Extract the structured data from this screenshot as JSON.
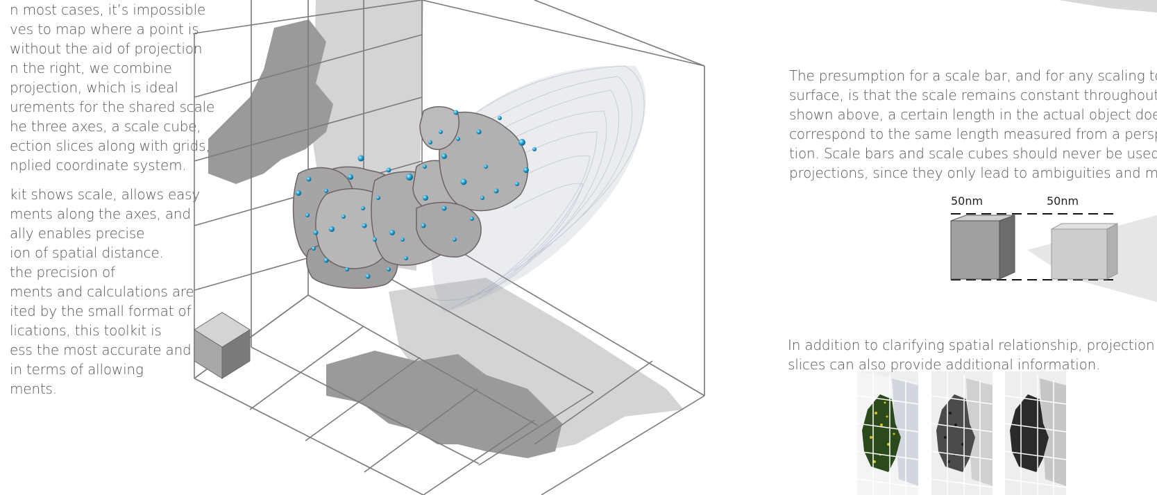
{
  "left_text": {
    "para1": [
      "n most cases, it’s impossible",
      "ves to map where a point is",
      "without the aid of projection",
      "n the right, we combine",
      " projection, which is ideal",
      "urements for the shared scale",
      "he three axes, a scale cube,",
      "ection slices along with grids,",
      "nplied coordinate system."
    ],
    "para2": [
      "kit shows scale, allows easy",
      "ments along the axes, and",
      "ally enables precise",
      "ion of spatial distance.",
      " the precision of",
      "ments and calculations are",
      "ited by the small format of",
      "lications, this toolkit is",
      "ess the most accurate and",
      "in terms of allowing",
      "ments."
    ]
  },
  "right_text": {
    "para1": [
      "The presumption for a scale bar, and for any scaling tool o",
      "surface, is that the scale remains constant throughout the i",
      "shown above, a certain length in the actual object doesn’t",
      "correspond to the same length measured from a perspectiv",
      "tion. Scale bars and scale cubes should never be used in p",
      "projections, since they only lead to ambiguities and mistak"
    ],
    "para2": [
      "In addition to clarifying spatial relationship, projection",
      "slices can also provide additional information."
    ]
  },
  "scale_labels": [
    "50nm",
    "50nm"
  ],
  "colors": {
    "grid_line": "#7a7a7a",
    "shadow_dark": "#9a9a9a",
    "shadow_light": "#cfcfcf",
    "particle": "#9c9c9c",
    "dot": "#2aa8d8",
    "haze": "#8a93ad",
    "slice_green": "#2b4a1c",
    "slice_yellow": "#d8c21a"
  }
}
